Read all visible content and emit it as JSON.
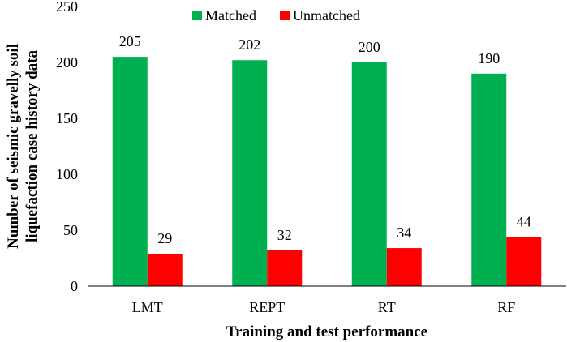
{
  "chart_data": {
    "type": "bar",
    "title": "",
    "xlabel": "Training and test performance",
    "ylabel_lines": [
      "Number of seismic gravelly soil",
      "liquefaction case history data"
    ],
    "categories": [
      "LMT",
      "REPT",
      "RT",
      "RF"
    ],
    "series": [
      {
        "name": "Matched",
        "color": "#00b050",
        "values": [
          205,
          202,
          200,
          190
        ]
      },
      {
        "name": "Unmatched",
        "color": "#ff0000",
        "values": [
          29,
          32,
          34,
          44
        ]
      }
    ],
    "ylim": [
      0,
      250
    ],
    "yticks": [
      0,
      50,
      100,
      150,
      200,
      250
    ],
    "grid": false,
    "legend_position": "top-center"
  }
}
